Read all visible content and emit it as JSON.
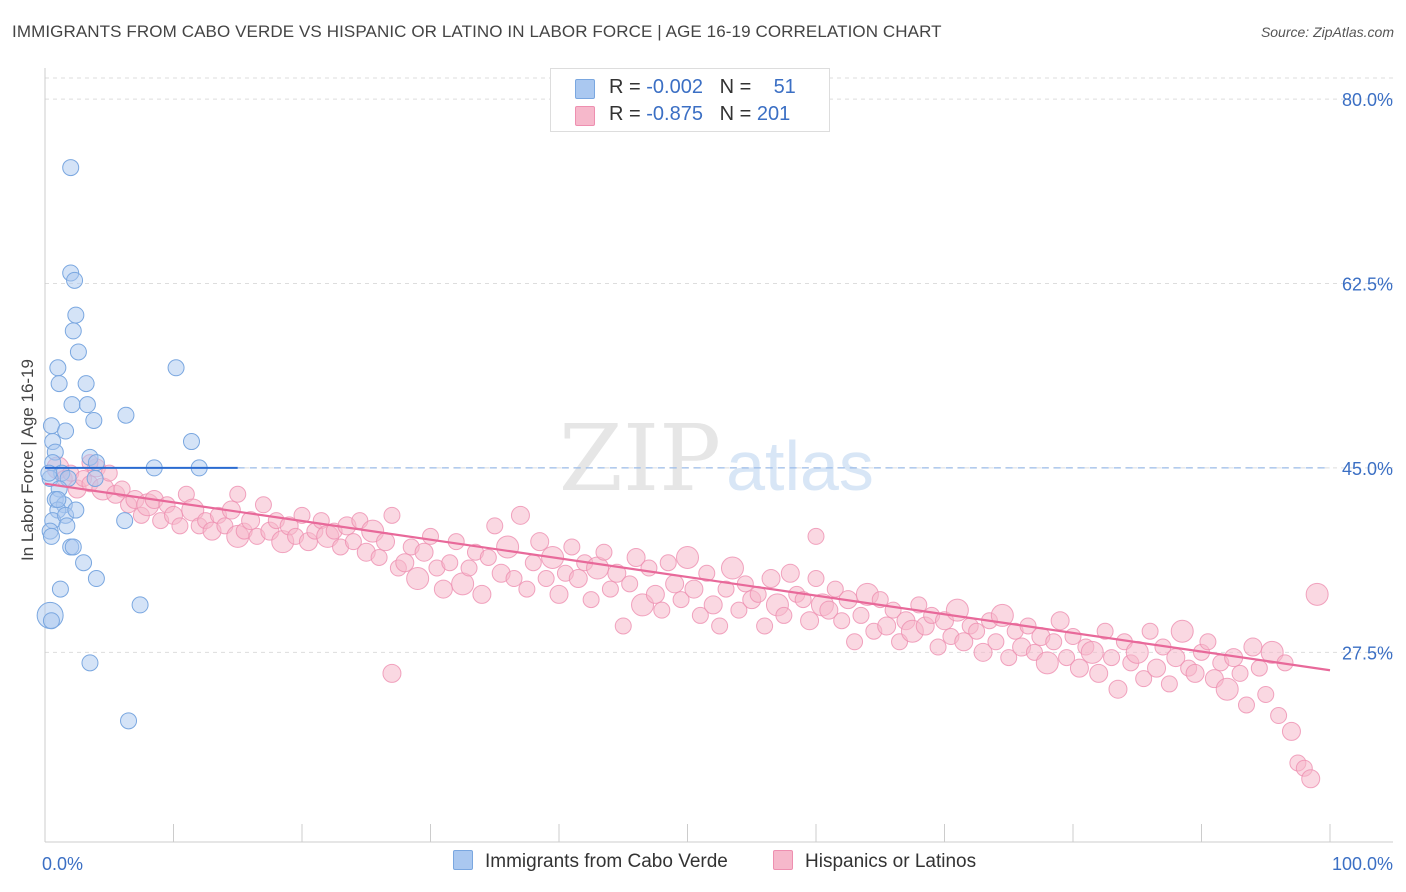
{
  "title": "IMMIGRANTS FROM CABO VERDE VS HISPANIC OR LATINO IN LABOR FORCE | AGE 16-19 CORRELATION CHART",
  "source": "Source: ZipAtlas.com",
  "watermark": {
    "zip": "ZIP",
    "atlas": "atlas"
  },
  "colors": {
    "blue_fill": "#aac8f0",
    "blue_stroke": "#7aa7e0",
    "blue_line": "#2a6bd1",
    "pink_fill": "#f6b8cb",
    "pink_stroke": "#ee8fb0",
    "pink_line": "#e8699a",
    "axis_label": "#3b6fc4",
    "grid": "#dddddd"
  },
  "legend": {
    "rows": [
      {
        "r_label": "R =",
        "r_value": "-0.002",
        "n_label": "N =",
        "n_value": "51"
      },
      {
        "r_label": "R =",
        "r_value": "-0.875",
        "n_label": "N =",
        "n_value": "201"
      }
    ]
  },
  "bottom_legend": {
    "blue": "Immigrants from Cabo Verde",
    "pink": "Hispanics or Latinos"
  },
  "chart_data": {
    "type": "scatter",
    "xlabel": "",
    "ylabel": "In Labor Force | Age 16-19",
    "xlim": [
      0,
      100
    ],
    "ylim": [
      9.5,
      82
    ],
    "x_tick_labels": [
      {
        "value": 0,
        "label": "0.0%"
      },
      {
        "value": 100,
        "label": "100.0%"
      }
    ],
    "y_ticks": [
      {
        "value": 80.0,
        "label": "80.0%"
      },
      {
        "value": 62.5,
        "label": "62.5%"
      },
      {
        "value": 45.0,
        "label": "45.0%"
      },
      {
        "value": 27.5,
        "label": "27.5%"
      }
    ],
    "grid": "horizontal dashed",
    "series": [
      {
        "name": "Immigrants from Cabo Verde",
        "color": "blue",
        "trend": {
          "x": [
            0,
            15
          ],
          "y": [
            45.0,
            45.0
          ],
          "dashed_extension_to": 100
        },
        "points": [
          [
            2.0,
            73.5
          ],
          [
            2.0,
            63.5
          ],
          [
            2.3,
            62.8
          ],
          [
            2.4,
            59.5
          ],
          [
            2.2,
            58.0
          ],
          [
            2.6,
            56.0
          ],
          [
            1.0,
            54.5
          ],
          [
            1.1,
            53.0
          ],
          [
            3.2,
            53.0
          ],
          [
            10.2,
            54.5
          ],
          [
            2.1,
            51.0
          ],
          [
            3.3,
            51.0
          ],
          [
            0.5,
            49.0
          ],
          [
            1.6,
            48.5
          ],
          [
            3.8,
            49.5
          ],
          [
            6.3,
            50.0
          ],
          [
            0.6,
            47.5
          ],
          [
            0.8,
            46.5
          ],
          [
            3.5,
            46.0
          ],
          [
            11.4,
            47.5
          ],
          [
            4.0,
            45.5
          ],
          [
            0.6,
            45.5
          ],
          [
            8.5,
            45.0
          ],
          [
            12.0,
            45.0
          ],
          [
            1.3,
            44.5
          ],
          [
            1.8,
            44.0
          ],
          [
            3.9,
            44.0
          ],
          [
            0.4,
            44.0
          ],
          [
            1.1,
            43.0
          ],
          [
            0.8,
            42.0
          ],
          [
            1.5,
            41.5
          ],
          [
            1.0,
            41.0
          ],
          [
            0.6,
            40.0
          ],
          [
            1.6,
            40.5
          ],
          [
            6.2,
            40.0
          ],
          [
            1.7,
            39.5
          ],
          [
            0.4,
            39.0
          ],
          [
            0.5,
            38.5
          ],
          [
            2.0,
            37.5
          ],
          [
            2.2,
            37.5
          ],
          [
            3.0,
            36.0
          ],
          [
            4.0,
            34.5
          ],
          [
            1.2,
            33.5
          ],
          [
            7.4,
            32.0
          ],
          [
            0.4,
            31.0
          ],
          [
            0.5,
            30.5
          ],
          [
            3.5,
            26.5
          ],
          [
            6.5,
            21.0
          ],
          [
            1.0,
            42.0
          ],
          [
            2.4,
            41.0
          ],
          [
            0.3,
            44.5
          ]
        ]
      },
      {
        "name": "Hispanics or Latinos",
        "color": "pink",
        "trend": {
          "x": [
            0,
            100
          ],
          "y": [
            43.5,
            25.8
          ]
        },
        "points": [
          [
            1.0,
            45.0
          ],
          [
            1.5,
            44.0
          ],
          [
            2.0,
            44.5
          ],
          [
            2.5,
            43.0
          ],
          [
            3.0,
            44.0
          ],
          [
            3.5,
            43.5
          ],
          [
            4.0,
            45.0
          ],
          [
            4.5,
            43.0
          ],
          [
            5.0,
            44.5
          ],
          [
            5.5,
            42.5
          ],
          [
            6.0,
            43.0
          ],
          [
            6.5,
            41.5
          ],
          [
            7.0,
            42.0
          ],
          [
            7.5,
            40.5
          ],
          [
            8.0,
            41.5
          ],
          [
            8.5,
            42.0
          ],
          [
            9.0,
            40.0
          ],
          [
            9.5,
            41.5
          ],
          [
            10.0,
            40.5
          ],
          [
            10.5,
            39.5
          ],
          [
            11.0,
            42.5
          ],
          [
            11.5,
            41.0
          ],
          [
            12.0,
            39.5
          ],
          [
            12.5,
            40.0
          ],
          [
            13.0,
            39.0
          ],
          [
            13.5,
            40.5
          ],
          [
            14.0,
            39.5
          ],
          [
            14.5,
            41.0
          ],
          [
            15.0,
            38.5
          ],
          [
            15.5,
            39.0
          ],
          [
            16.0,
            40.0
          ],
          [
            16.5,
            38.5
          ],
          [
            17.0,
            41.5
          ],
          [
            17.5,
            39.0
          ],
          [
            18.0,
            40.0
          ],
          [
            18.5,
            38.0
          ],
          [
            19.0,
            39.5
          ],
          [
            19.5,
            38.5
          ],
          [
            20.0,
            40.5
          ],
          [
            20.5,
            38.0
          ],
          [
            21.0,
            39.0
          ],
          [
            21.5,
            40.0
          ],
          [
            22.0,
            38.5
          ],
          [
            22.5,
            39.0
          ],
          [
            23.0,
            37.5
          ],
          [
            23.5,
            39.5
          ],
          [
            24.0,
            38.0
          ],
          [
            24.5,
            40.0
          ],
          [
            25.0,
            37.0
          ],
          [
            25.5,
            39.0
          ],
          [
            26.0,
            36.5
          ],
          [
            26.5,
            38.0
          ],
          [
            27.0,
            40.5
          ],
          [
            27.5,
            35.5
          ],
          [
            28.0,
            36.0
          ],
          [
            28.5,
            37.5
          ],
          [
            29.0,
            34.5
          ],
          [
            29.5,
            37.0
          ],
          [
            30.0,
            38.5
          ],
          [
            30.5,
            35.5
          ],
          [
            31.0,
            33.5
          ],
          [
            31.5,
            36.0
          ],
          [
            32.0,
            38.0
          ],
          [
            32.5,
            34.0
          ],
          [
            33.0,
            35.5
          ],
          [
            33.5,
            37.0
          ],
          [
            34.0,
            33.0
          ],
          [
            34.5,
            36.5
          ],
          [
            35.0,
            39.5
          ],
          [
            35.5,
            35.0
          ],
          [
            36.0,
            37.5
          ],
          [
            36.5,
            34.5
          ],
          [
            37.0,
            40.5
          ],
          [
            37.5,
            33.5
          ],
          [
            38.0,
            36.0
          ],
          [
            38.5,
            38.0
          ],
          [
            39.0,
            34.5
          ],
          [
            39.5,
            36.5
          ],
          [
            40.0,
            33.0
          ],
          [
            40.5,
            35.0
          ],
          [
            41.0,
            37.5
          ],
          [
            41.5,
            34.5
          ],
          [
            42.0,
            36.0
          ],
          [
            42.5,
            32.5
          ],
          [
            43.0,
            35.5
          ],
          [
            43.5,
            37.0
          ],
          [
            44.0,
            33.5
          ],
          [
            44.5,
            35.0
          ],
          [
            45.0,
            30.0
          ],
          [
            45.5,
            34.0
          ],
          [
            46.0,
            36.5
          ],
          [
            46.5,
            32.0
          ],
          [
            47.0,
            35.5
          ],
          [
            47.5,
            33.0
          ],
          [
            48.0,
            31.5
          ],
          [
            48.5,
            36.0
          ],
          [
            49.0,
            34.0
          ],
          [
            49.5,
            32.5
          ],
          [
            50.0,
            36.5
          ],
          [
            50.5,
            33.5
          ],
          [
            51.0,
            31.0
          ],
          [
            51.5,
            35.0
          ],
          [
            52.0,
            32.0
          ],
          [
            52.5,
            30.0
          ],
          [
            53.0,
            33.5
          ],
          [
            53.5,
            35.5
          ],
          [
            54.0,
            31.5
          ],
          [
            54.5,
            34.0
          ],
          [
            55.0,
            32.5
          ],
          [
            55.5,
            33.0
          ],
          [
            56.0,
            30.0
          ],
          [
            56.5,
            34.5
          ],
          [
            57.0,
            32.0
          ],
          [
            57.5,
            31.0
          ],
          [
            58.0,
            35.0
          ],
          [
            58.5,
            33.0
          ],
          [
            59.0,
            32.5
          ],
          [
            59.5,
            30.5
          ],
          [
            60.0,
            34.5
          ],
          [
            60.5,
            32.0
          ],
          [
            61.0,
            31.5
          ],
          [
            61.5,
            33.5
          ],
          [
            62.0,
            30.5
          ],
          [
            62.5,
            32.5
          ],
          [
            63.0,
            28.5
          ],
          [
            63.5,
            31.0
          ],
          [
            64.0,
            33.0
          ],
          [
            64.5,
            29.5
          ],
          [
            65.0,
            32.5
          ],
          [
            65.5,
            30.0
          ],
          [
            66.0,
            31.5
          ],
          [
            66.5,
            28.5
          ],
          [
            67.0,
            30.5
          ],
          [
            67.5,
            29.5
          ],
          [
            68.0,
            32.0
          ],
          [
            68.5,
            30.0
          ],
          [
            69.0,
            31.0
          ],
          [
            69.5,
            28.0
          ],
          [
            70.0,
            30.5
          ],
          [
            70.5,
            29.0
          ],
          [
            71.0,
            31.5
          ],
          [
            71.5,
            28.5
          ],
          [
            72.0,
            30.0
          ],
          [
            72.5,
            29.5
          ],
          [
            73.0,
            27.5
          ],
          [
            73.5,
            30.5
          ],
          [
            74.0,
            28.5
          ],
          [
            74.5,
            31.0
          ],
          [
            75.0,
            27.0
          ],
          [
            75.5,
            29.5
          ],
          [
            76.0,
            28.0
          ],
          [
            76.5,
            30.0
          ],
          [
            77.0,
            27.5
          ],
          [
            77.5,
            29.0
          ],
          [
            78.0,
            26.5
          ],
          [
            78.5,
            28.5
          ],
          [
            79.0,
            30.5
          ],
          [
            79.5,
            27.0
          ],
          [
            80.0,
            29.0
          ],
          [
            80.5,
            26.0
          ],
          [
            81.0,
            28.0
          ],
          [
            81.5,
            27.5
          ],
          [
            82.0,
            25.5
          ],
          [
            82.5,
            29.5
          ],
          [
            83.0,
            27.0
          ],
          [
            83.5,
            24.0
          ],
          [
            84.0,
            28.5
          ],
          [
            84.5,
            26.5
          ],
          [
            85.0,
            27.5
          ],
          [
            85.5,
            25.0
          ],
          [
            86.0,
            29.5
          ],
          [
            86.5,
            26.0
          ],
          [
            87.0,
            28.0
          ],
          [
            87.5,
            24.5
          ],
          [
            88.0,
            27.0
          ],
          [
            88.5,
            29.5
          ],
          [
            89.0,
            26.0
          ],
          [
            89.5,
            25.5
          ],
          [
            90.0,
            27.5
          ],
          [
            90.5,
            28.5
          ],
          [
            91.0,
            25.0
          ],
          [
            91.5,
            26.5
          ],
          [
            92.0,
            24.0
          ],
          [
            92.5,
            27.0
          ],
          [
            93.0,
            25.5
          ],
          [
            93.5,
            22.5
          ],
          [
            94.0,
            28.0
          ],
          [
            94.5,
            26.0
          ],
          [
            95.0,
            23.5
          ],
          [
            95.5,
            27.5
          ],
          [
            96.0,
            21.5
          ],
          [
            96.5,
            26.5
          ],
          [
            97.0,
            20.0
          ],
          [
            97.5,
            17.0
          ],
          [
            98.0,
            16.5
          ],
          [
            98.5,
            15.5
          ],
          [
            99.0,
            33.0
          ],
          [
            60.0,
            38.5
          ],
          [
            27.0,
            25.5
          ],
          [
            15.0,
            42.5
          ],
          [
            3.5,
            45.5
          ]
        ]
      }
    ]
  }
}
